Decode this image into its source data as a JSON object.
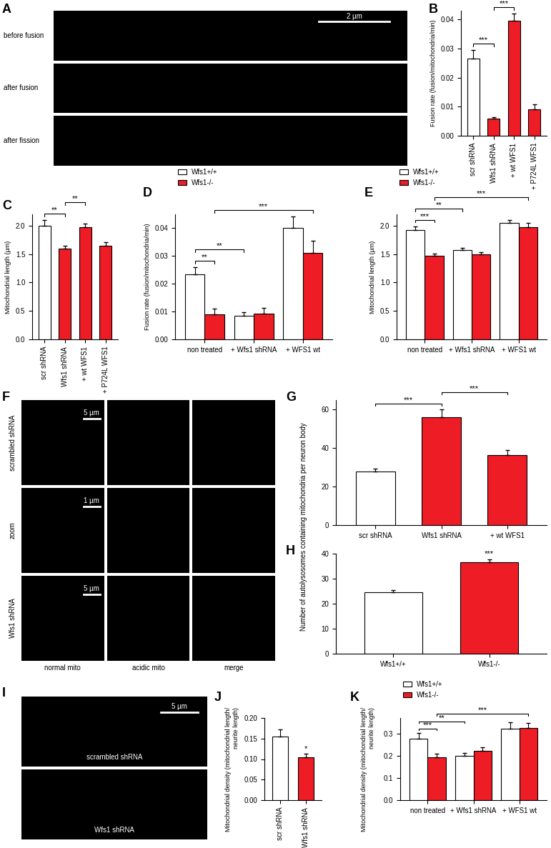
{
  "chart_data": [
    {
      "type": "image",
      "panel": "A",
      "row_labels": [
        "before fusion",
        "after fusion",
        "after fission"
      ],
      "scale_bar": "2 µm"
    },
    {
      "type": "bar",
      "panel": "B",
      "ylabel": "Fusion rate (fusion/mitochondria/min)",
      "categories": [
        "scr shRNA",
        "Wfs1 shRNA",
        "+ wt WFS1",
        "+ P724L WFS1"
      ],
      "values": [
        0.0265,
        0.006,
        0.0395,
        0.009
      ],
      "errors": [
        0.003,
        0.0003,
        0.0025,
        0.0018
      ],
      "colors": [
        "#ffffff",
        "#ee1c25",
        "#ee1c25",
        "#ee1c25"
      ],
      "ylim": [
        0,
        0.043
      ],
      "yticks": [
        {
          "value": 0,
          "label": "0.00"
        },
        0.01,
        0.02,
        0.03,
        0.04
      ],
      "annotations": [
        {
          "between": [
            0,
            1
          ],
          "label": "***"
        },
        {
          "between": [
            1,
            2
          ],
          "label": "***"
        }
      ]
    },
    {
      "type": "bar",
      "panel": "C",
      "ylabel": "Mitochondrial length (µm)",
      "categories": [
        "scr shRNA",
        "Wfs1 shRNA",
        "+ wt WFS1",
        "+ P724L WFS1"
      ],
      "values": [
        2.0,
        1.6,
        1.97,
        1.65
      ],
      "errors": [
        0.1,
        0.05,
        0.07,
        0.06
      ],
      "colors": [
        "#ffffff",
        "#ee1c25",
        "#ee1c25",
        "#ee1c25"
      ],
      "ylim": [
        0,
        2.2
      ],
      "yticks": [
        0.0,
        0.5,
        1.0,
        1.5,
        2.0
      ],
      "annotations": [
        {
          "between": [
            0,
            1
          ],
          "label": "**"
        },
        {
          "between": [
            1,
            2
          ],
          "label": "**"
        }
      ]
    },
    {
      "type": "bar",
      "panel": "D",
      "ylabel": "Fusion rate (fusion/mitochondria/min)",
      "categories": [
        "non treated",
        "+ Wfs1 shRNA",
        "+ WFS1 wt"
      ],
      "series": [
        {
          "name": "Wfs1+/+",
          "color": "#ffffff",
          "values": [
            0.0235,
            0.0085,
            0.04
          ],
          "errors": [
            0.0025,
            0.0012,
            0.0042
          ]
        },
        {
          "name": "Wfs1-/-",
          "color": "#ee1c25",
          "values": [
            0.009,
            0.0092,
            0.031
          ],
          "errors": [
            0.002,
            0.002,
            0.0045
          ]
        }
      ],
      "ylim": [
        0,
        0.045
      ],
      "yticks": [
        {
          "value": 0,
          "label": "0.00"
        },
        0.01,
        0.02,
        0.03,
        0.04
      ],
      "legend": "upper left",
      "annotations": [
        {
          "between": [
            [
              0,
              0
            ],
            [
              0,
              1
            ]
          ],
          "label": "**"
        },
        {
          "between": [
            [
              0,
              0
            ],
            [
              1,
              0
            ]
          ],
          "label": "**"
        },
        {
          "between": [
            [
              0,
              1
            ],
            [
              2,
              1
            ]
          ],
          "label": "***"
        }
      ]
    },
    {
      "type": "bar",
      "panel": "E",
      "ylabel": "Mitochondrial length (µm)",
      "categories": [
        "non treated",
        "+ Wfs1 shRNA",
        "+ WFS1 wt"
      ],
      "series": [
        {
          "name": "Wfs1+/+",
          "color": "#ffffff",
          "values": [
            1.92,
            1.57,
            2.05
          ],
          "errors": [
            0.07,
            0.04,
            0.05
          ]
        },
        {
          "name": "Wfs1-/-",
          "color": "#ee1c25",
          "values": [
            1.47,
            1.5,
            1.98
          ],
          "errors": [
            0.04,
            0.04,
            0.07
          ]
        }
      ],
      "ylim": [
        0,
        2.2
      ],
      "yticks": [
        0.0,
        0.5,
        1.0,
        1.5,
        2.0
      ],
      "legend": "upper left",
      "annotations": [
        {
          "between": [
            [
              0,
              0
            ],
            [
              0,
              1
            ]
          ],
          "label": "***"
        },
        {
          "between": [
            [
              0,
              0
            ],
            [
              1,
              0
            ]
          ],
          "label": "**"
        },
        {
          "between": [
            [
              0,
              1
            ],
            [
              2,
              1
            ]
          ],
          "label": "***"
        }
      ]
    },
    {
      "type": "image",
      "panel": "F",
      "row_labels": [
        "scrambled shRNA",
        "zoom",
        "Wfs1 shRNA"
      ],
      "column_labels": [
        "normal mito",
        "acidic mito",
        "merge"
      ],
      "scale_bars": [
        "5 µm",
        "1 µm",
        "5 µm"
      ]
    },
    {
      "type": "bar",
      "panel": "G",
      "ylabel": "Number of autolysosomes containing mitochondria per neuron body",
      "categories": [
        "scr shRNA",
        "Wfs1 shRNA",
        "+ wt WFS1"
      ],
      "values": [
        28,
        56,
        36.5
      ],
      "errors": [
        1.5,
        4,
        2.5
      ],
      "colors": [
        "#ffffff",
        "#ee1c25",
        "#ee1c25"
      ],
      "ylim": [
        0,
        65
      ],
      "yticks": [
        0,
        20,
        40,
        60
      ],
      "annotations": [
        {
          "between": [
            0,
            1
          ],
          "label": "***"
        },
        {
          "between": [
            1,
            2
          ],
          "label": "***"
        }
      ]
    },
    {
      "type": "bar",
      "panel": "H",
      "categories": [
        "Wfs1+/+",
        "Wfs1-/-"
      ],
      "values": [
        24.5,
        36.5
      ],
      "errors": [
        1,
        1.2
      ],
      "colors": [
        "#ffffff",
        "#ee1c25"
      ],
      "ylim": [
        0,
        40
      ],
      "yticks": [
        0,
        10,
        20,
        30,
        40
      ],
      "annotations": [
        {
          "bar": 1,
          "label": "***"
        }
      ]
    },
    {
      "type": "image",
      "panel": "I",
      "row_labels": [
        "scrambled shRNA",
        "Wfs1 shRNA"
      ],
      "scale_bar": "5 µm"
    },
    {
      "type": "bar",
      "panel": "J",
      "ylabel": "Mitochondrial density (mitochondrial length/ neurite length)",
      "categories": [
        "scr shRNA",
        "Wfs1 shRNA"
      ],
      "values": [
        0.155,
        0.105
      ],
      "errors": [
        0.017,
        0.008
      ],
      "colors": [
        "#ffffff",
        "#ee1c25"
      ],
      "ylim": [
        0,
        0.2
      ],
      "yticks": [
        {
          "value": 0,
          "label": "0.00"
        },
        0.05,
        {
          "value": 0.1,
          "label": "0.10"
        },
        0.15,
        {
          "value": 0.2,
          "label": "0.20"
        }
      ],
      "annotations": [
        {
          "bar": 1,
          "label": "*"
        }
      ]
    },
    {
      "type": "bar",
      "panel": "K",
      "ylabel": "Mitochondrial density (mitochondrial length/ neurite length)",
      "categories": [
        "non treated",
        "+ Wfs1 shRNA",
        "+ WFS1 wt"
      ],
      "series": [
        {
          "name": "Wfs1+/+",
          "color": "#ffffff",
          "values": [
            0.278,
            0.2,
            0.322
          ],
          "errors": [
            0.025,
            0.012,
            0.028
          ]
        },
        {
          "name": "Wfs1-/-",
          "color": "#ee1c25",
          "values": [
            0.193,
            0.222,
            0.325
          ],
          "errors": [
            0.015,
            0.015,
            0.022
          ]
        }
      ],
      "ylim": [
        0,
        0.37
      ],
      "yticks": [
        0.0,
        0.1,
        0.2,
        0.3
      ],
      "legend": "upper left",
      "annotations": [
        {
          "between": [
            [
              0,
              0
            ],
            [
              0,
              1
            ]
          ],
          "label": "***"
        },
        {
          "between": [
            [
              0,
              0
            ],
            [
              1,
              0
            ]
          ],
          "label": "**"
        },
        {
          "between": [
            [
              0,
              1
            ],
            [
              2,
              1
            ]
          ],
          "label": "***"
        }
      ]
    }
  ]
}
